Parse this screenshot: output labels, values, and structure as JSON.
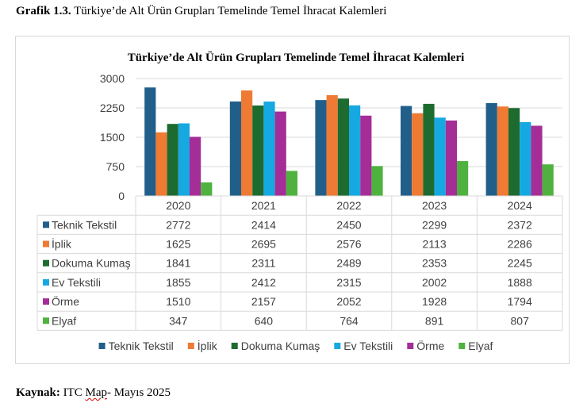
{
  "caption": {
    "number": "Grafik 1.3.",
    "text": " Türkiye’de Alt Ürün Grupları Temelinde Temel İhracat Kalemleri"
  },
  "source": {
    "label": "Kaynak:",
    "prefix": " ITC ",
    "wavy": "Map",
    "suffix": "- Mayıs 2025"
  },
  "chart_data": {
    "type": "bar",
    "title": "Türkiye’de Alt Ürün Grupları Temelinde Temel İhracat Kalemleri",
    "categories": [
      "2020",
      "2021",
      "2022",
      "2023",
      "2024"
    ],
    "ylim": [
      0,
      3000
    ],
    "yticks": [
      "0",
      "750",
      "1500",
      "2250",
      "3000"
    ],
    "grid": true,
    "legend": "bottom",
    "data_table": true,
    "series": [
      {
        "name": "Teknik Tekstil",
        "color": "#215f8a",
        "values": [
          2772,
          2414,
          2450,
          2299,
          2372
        ]
      },
      {
        "name": "İplik",
        "color": "#ee7a33",
        "values": [
          1625,
          2695,
          2576,
          2113,
          2286
        ]
      },
      {
        "name": "Dokuma Kumaş",
        "color": "#1e6b30",
        "values": [
          1841,
          2311,
          2489,
          2353,
          2245
        ]
      },
      {
        "name": "Ev Tekstili",
        "color": "#16a9e1",
        "values": [
          1855,
          2412,
          2315,
          2002,
          1888
        ]
      },
      {
        "name": "Örme",
        "color": "#a52d98",
        "values": [
          1510,
          2157,
          2052,
          1928,
          1794
        ]
      },
      {
        "name": "Elyaf",
        "color": "#4fb23f",
        "values": [
          347,
          640,
          764,
          891,
          807
        ]
      }
    ]
  }
}
